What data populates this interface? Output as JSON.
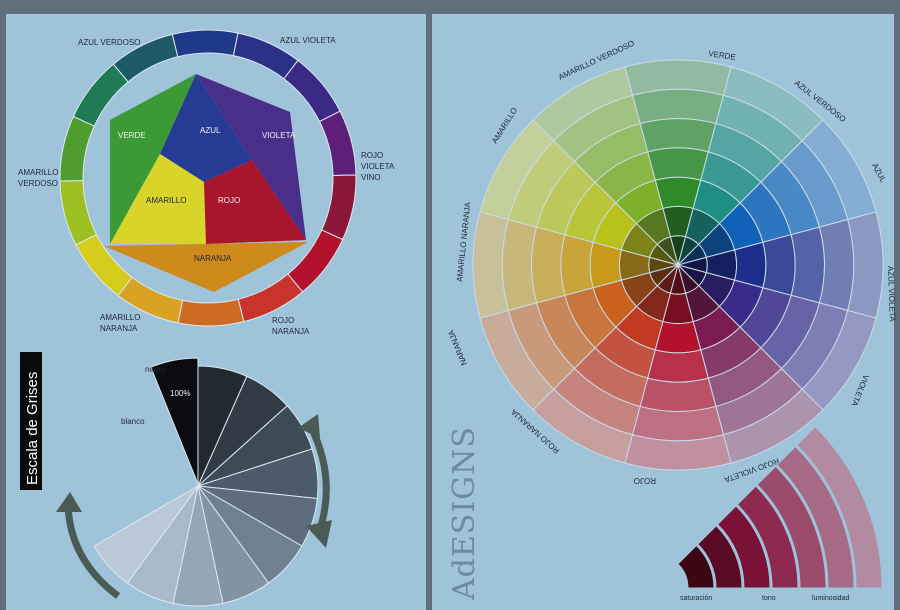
{
  "colors": {
    "frame": "#5f6e7a",
    "panel": "#9fc3d9",
    "ring_border": "#dce9f1"
  },
  "basic_wheel": {
    "outer_labels": [
      {
        "id": "azul_verdoso",
        "text": "AZUL VERDOSO"
      },
      {
        "id": "azul_violeta",
        "text": "AZUL VIOLETA"
      },
      {
        "id": "rojo_violeta_1",
        "text": "ROJO"
      },
      {
        "id": "rojo_violeta_2",
        "text": "VIOLETA"
      },
      {
        "id": "rojo_violeta_3",
        "text": "VINO"
      },
      {
        "id": "rojo_naranja_1",
        "text": "ROJO"
      },
      {
        "id": "rojo_naranja_2",
        "text": "NARANJA"
      },
      {
        "id": "amarillo_naranja_1",
        "text": "AMARILLO"
      },
      {
        "id": "amarillo_naranja_2",
        "text": "NARANJA"
      },
      {
        "id": "amarillo_verdoso_1",
        "text": "AMARILLO"
      },
      {
        "id": "amarillo_verdoso_2",
        "text": "VERDOSO"
      }
    ],
    "ring_colors": [
      "#1f3a8a",
      "#2b3187",
      "#3a2a86",
      "#5e1f78",
      "#8a1737",
      "#b3122c",
      "#c8342b",
      "#cf6a22",
      "#d8a322",
      "#d6cc1c",
      "#9cbf22",
      "#4f9d2e",
      "#1f7a55",
      "#1d5a66"
    ],
    "inner": [
      {
        "id": "verde",
        "text": "VERDE",
        "color": "#3c9a36"
      },
      {
        "id": "azul",
        "text": "AZUL",
        "color": "#263c94"
      },
      {
        "id": "violeta",
        "text": "VIOLETA",
        "color": "#4a2f8a"
      },
      {
        "id": "amarillo",
        "text": "AMARILLO",
        "color": "#d8d42a"
      },
      {
        "id": "rojo",
        "text": "ROJO",
        "color": "#a8152d"
      },
      {
        "id": "naranja",
        "text": "NARANJA",
        "color": "#cf8a1c"
      }
    ]
  },
  "grayscale": {
    "title": "Escala de Grises",
    "label_negro": "negro",
    "label_100": "100%",
    "label_blanco": "blanco",
    "shades": [
      "#0b0c0f",
      "#222931",
      "#303b46",
      "#3d4a58",
      "#4c5b6a",
      "#5d6d7d",
      "#6f8091",
      "#8293a4",
      "#95a6b7",
      "#a8b9c9",
      "#bac9d7"
    ]
  },
  "big_wheel": {
    "labels": [
      {
        "id": "verde",
        "text": "VERDE"
      },
      {
        "id": "azul_verdoso",
        "text": "AZUL VERDOSO"
      },
      {
        "id": "azul",
        "text": "AZUL"
      },
      {
        "id": "azul_violeta",
        "text": "AZUL VIOLETA"
      },
      {
        "id": "violeta",
        "text": "VIOLETA"
      },
      {
        "id": "rojo_violeta",
        "text": "ROJO VIOLETA"
      },
      {
        "id": "rojo",
        "text": "ROJO"
      },
      {
        "id": "rojo_naranja",
        "text": "ROJO NARANJA"
      },
      {
        "id": "naranja",
        "text": "NARANJA"
      },
      {
        "id": "amarillo_naranja",
        "text": "AMARILLO NARANJA"
      },
      {
        "id": "amarillo",
        "text": "AMARILLO"
      },
      {
        "id": "amarillo_verdoso",
        "text": "AMARILLO VERDOSO"
      }
    ],
    "hues": [
      "#2f8a2a",
      "#1f8f84",
      "#0f62b8",
      "#1e2d8a",
      "#3a2a8a",
      "#7a1c52",
      "#b3122c",
      "#c23a22",
      "#c8621c",
      "#c89a1a",
      "#b8c21a",
      "#7fb02a"
    ]
  },
  "brand": {
    "text": "AdESIGNS"
  },
  "fan": {
    "labels": [
      {
        "id": "saturacion",
        "text": "saturación"
      },
      {
        "id": "tono",
        "text": "tono"
      },
      {
        "id": "luminosidad",
        "text": "luminosidad"
      }
    ],
    "colors": [
      "#3d0614",
      "#5a0a24",
      "#7a1238",
      "#8e2a50",
      "#9a4a6a",
      "#a66a86",
      "#b28aa2"
    ]
  }
}
